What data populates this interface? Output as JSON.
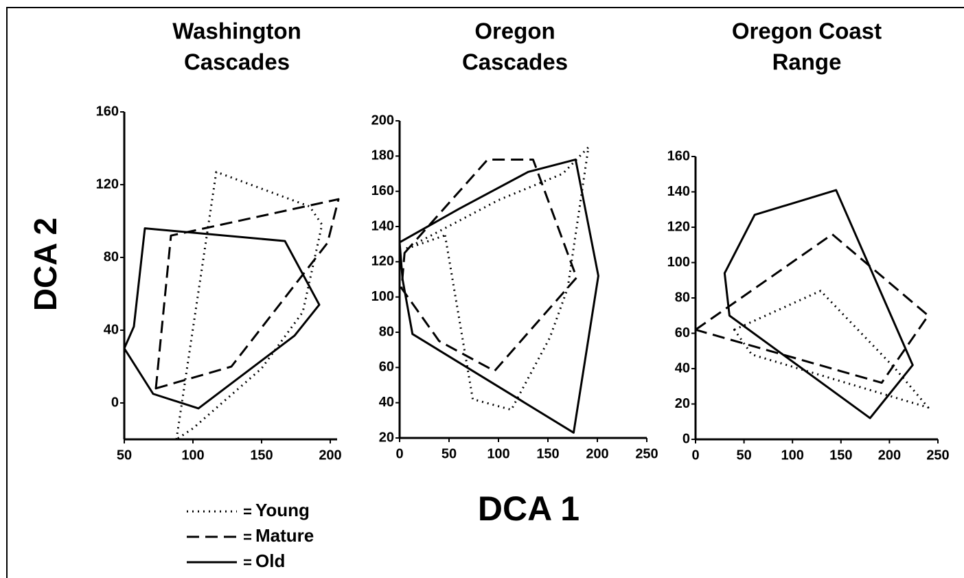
{
  "x_label": "DCA 1",
  "y_label": "DCA 2",
  "chart_data": [
    {
      "type": "polygon",
      "title": [
        "Washington",
        "Cascades"
      ],
      "xlim": [
        50,
        205
      ],
      "ylim": [
        -20,
        160
      ],
      "xticks": [
        50,
        100,
        150,
        200
      ],
      "yticks": [
        0,
        40,
        80,
        120,
        160
      ],
      "series": [
        {
          "name": "Young",
          "color": "#000000",
          "dash": "dotted",
          "x": [
            88,
            117,
            185,
            194,
            180,
            150,
            100
          ],
          "y": [
            -20,
            127,
            108,
            98,
            50,
            19,
            -14
          ]
        },
        {
          "name": "Mature",
          "color": "#000000",
          "dash": "dashed",
          "x": [
            73,
            84,
            206,
            198,
            128
          ],
          "y": [
            8,
            92,
            112,
            88,
            20
          ]
        },
        {
          "name": "Old",
          "color": "#000000",
          "dash": "solid",
          "x": [
            50,
            57,
            65,
            167,
            192,
            174,
            104,
            71
          ],
          "y": [
            30,
            42,
            96,
            89,
            54,
            37,
            -3,
            5
          ]
        }
      ]
    },
    {
      "type": "polygon",
      "title": [
        "Oregon",
        "Cascades"
      ],
      "xlim": [
        0,
        250
      ],
      "ylim": [
        20,
        200
      ],
      "xticks": [
        0,
        50,
        100,
        150,
        200,
        250
      ],
      "yticks": [
        20,
        40,
        60,
        80,
        100,
        120,
        140,
        160,
        180,
        200
      ],
      "series": [
        {
          "name": "Young",
          "color": "#000000",
          "dash": "dotted",
          "x": [
            46,
            74,
            113,
            152,
            170,
            191,
            165,
            100,
            5
          ],
          "y": [
            135,
            42,
            36,
            77,
            105,
            185,
            170,
            155,
            127
          ]
        },
        {
          "name": "Mature",
          "color": "#000000",
          "dash": "dashed",
          "x": [
            5,
            89,
            135,
            179,
            96,
            40,
            2
          ],
          "y": [
            125,
            178,
            178,
            111,
            58,
            75,
            105
          ]
        },
        {
          "name": "Old",
          "color": "#000000",
          "dash": "solid",
          "x": [
            0,
            60,
            130,
            178,
            201,
            176,
            13,
            3
          ],
          "y": [
            131,
            150,
            171,
            178,
            112,
            23,
            79,
            110
          ]
        }
      ]
    },
    {
      "type": "polygon",
      "title": [
        "Oregon Coast",
        "Range"
      ],
      "xlim": [
        0,
        250
      ],
      "ylim": [
        0,
        160
      ],
      "xticks": [
        0,
        50,
        100,
        150,
        200,
        250
      ],
      "yticks": [
        0,
        20,
        40,
        60,
        80,
        100,
        120,
        140,
        160
      ],
      "series": [
        {
          "name": "Young",
          "color": "#000000",
          "dash": "dotted",
          "x": [
            40,
            129,
            206,
            240,
            58
          ],
          "y": [
            62,
            84,
            40,
            18,
            48
          ]
        },
        {
          "name": "Mature",
          "color": "#000000",
          "dash": "dashed",
          "x": [
            0,
            141,
            240,
            192
          ],
          "y": [
            62,
            116,
            70,
            32
          ]
        },
        {
          "name": "Old",
          "color": "#000000",
          "dash": "solid",
          "x": [
            30,
            61,
            145,
            224,
            180,
            35
          ],
          "y": [
            94,
            127,
            141,
            42,
            12,
            70
          ]
        }
      ]
    }
  ]
}
